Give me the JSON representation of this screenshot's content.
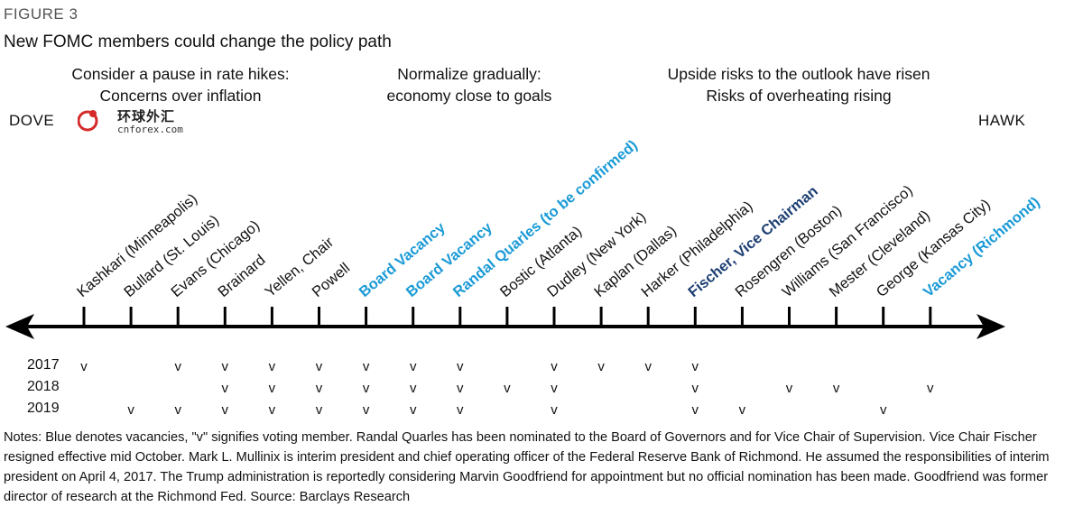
{
  "figure_label": "FIGURE 3",
  "title": "New FOMC members could change the policy path",
  "headers": [
    {
      "lines": [
        "Consider a pause in rate hikes:",
        "Concerns over inflation"
      ]
    },
    {
      "lines": [
        "Normalize gradually:",
        "economy close to goals"
      ]
    },
    {
      "lines": [
        "Upside risks to the outlook have risen",
        "Risks of overheating rising"
      ]
    }
  ],
  "dove_label": "DOVE",
  "hawk_label": "HAWK",
  "logo": {
    "cn": "环球外汇",
    "en": "cnforex.com"
  },
  "colors": {
    "vacancy_blue": "#1a9ad6",
    "vice_chair_navy": "#1d3f73",
    "default": "#111111"
  },
  "members": [
    {
      "label": "Kashkari (Minneapolis)",
      "color": "default"
    },
    {
      "label": "Bullard (St. Louis)",
      "color": "default"
    },
    {
      "label": "Evans (Chicago)",
      "color": "default"
    },
    {
      "label": "Brainard",
      "color": "default"
    },
    {
      "label": "Yellen, Chair",
      "color": "default"
    },
    {
      "label": "Powell",
      "color": "default"
    },
    {
      "label": "Board Vacancy",
      "color": "vacancy_blue"
    },
    {
      "label": "Board Vacancy",
      "color": "vacancy_blue"
    },
    {
      "label": "Randal Quarles (to be confirmed)",
      "color": "vacancy_blue"
    },
    {
      "label": "Bostic (Atlanta)",
      "color": "default"
    },
    {
      "label": "Dudley (New York)",
      "color": "default"
    },
    {
      "label": "Kaplan (Dallas)",
      "color": "default"
    },
    {
      "label": "Harker (Philadelphia)",
      "color": "default"
    },
    {
      "label": "Fischer, Vice Chairman",
      "color": "vice_chair_navy"
    },
    {
      "label": "Rosengren (Boston)",
      "color": "default"
    },
    {
      "label": "Williams (San Francisco)",
      "color": "default"
    },
    {
      "label": "Mester (Cleveland)",
      "color": "default"
    },
    {
      "label": "George (Kansas City)",
      "color": "default"
    },
    {
      "label": "Vacancy (Richmond)",
      "color": "vacancy_blue"
    }
  ],
  "vote_mark": "v",
  "voting": [
    {
      "year": "2017",
      "members": [
        0,
        2,
        3,
        4,
        5,
        6,
        7,
        8,
        10,
        11,
        12,
        13
      ]
    },
    {
      "year": "2018",
      "members": [
        3,
        4,
        5,
        6,
        7,
        8,
        9,
        10,
        13,
        15,
        16,
        18
      ]
    },
    {
      "year": "2019",
      "members": [
        1,
        2,
        3,
        4,
        5,
        6,
        7,
        8,
        10,
        13,
        14,
        17
      ]
    }
  ],
  "notes": "Notes: Blue denotes vacancies, \"v\" signifies voting member. Randal Quarles has been nominated to the Board of Governors and for Vice Chair of Supervision. Vice Chair Fischer resigned effective mid October. Mark L. Mullinix is interim president and chief operating officer of the Federal Reserve Bank of Richmond. He assumed the responsibilities of interim president on April 4, 2017. The Trump administration is reportedly considering Marvin Goodfriend for appointment but no official nomination has been made. Goodfriend was former director of research at the Richmond Fed. Source: Barclays Research"
}
